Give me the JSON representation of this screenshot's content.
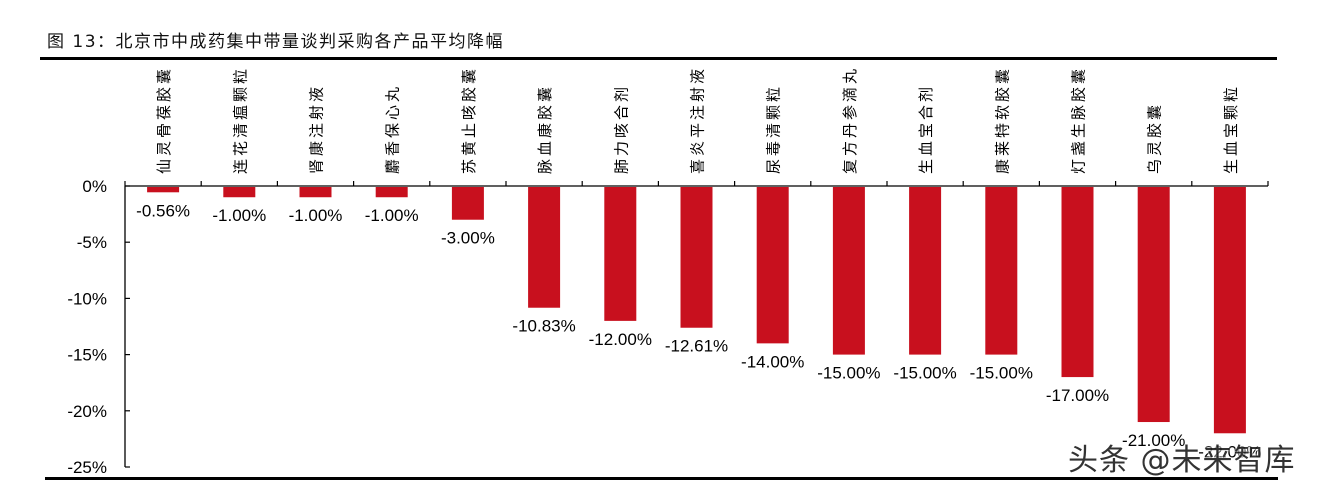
{
  "figure": {
    "title": "图 13：北京市中成药集中带量谈判采购各产品平均降幅",
    "watermark": "头条 @未来智库"
  },
  "colors": {
    "bar": "#C8101E",
    "axis": "#000000",
    "text": "#000000"
  },
  "chart_data": {
    "type": "bar",
    "title": "图 13：北京市中成药集中带量谈判采购各产品平均降幅",
    "xlabel": "",
    "ylabel": "",
    "categories": [
      "仙灵骨葆胶囊",
      "连花清瘟颗粒",
      "肾康注射液",
      "麝香保心丸",
      "苏黄止咳胶囊",
      "脉血康胶囊",
      "肺力咳合剂",
      "喜炎平注射液",
      "尿毒清颗粒",
      "复方丹参滴丸",
      "生血宝合剂",
      "康莱特软胶囊",
      "灯盏生脉胶囊",
      "乌灵胶囊",
      "生血宝颗粒"
    ],
    "values": [
      -0.56,
      -1.0,
      -1.0,
      -1.0,
      -3.0,
      -10.83,
      -12.0,
      -12.61,
      -14.0,
      -15.0,
      -15.0,
      -15.0,
      -17.0,
      -21.0,
      -22.0
    ],
    "value_labels": [
      "-0.56%",
      "-1.00%",
      "-1.00%",
      "-1.00%",
      "-3.00%",
      "-10.83%",
      "-12.00%",
      "-12.61%",
      "-14.00%",
      "-15.00%",
      "-15.00%",
      "-15.00%",
      "-17.00%",
      "-21.00%",
      "-22.00%"
    ],
    "ylim": [
      -25,
      0
    ],
    "yticks": [
      0,
      -5,
      -10,
      -15,
      -20,
      -25
    ],
    "ytick_labels": [
      "0%",
      "-5%",
      "-10%",
      "-15%",
      "-20%",
      "-25%"
    ],
    "category_label_position": "top, vertical",
    "grid": false,
    "legend": null
  }
}
